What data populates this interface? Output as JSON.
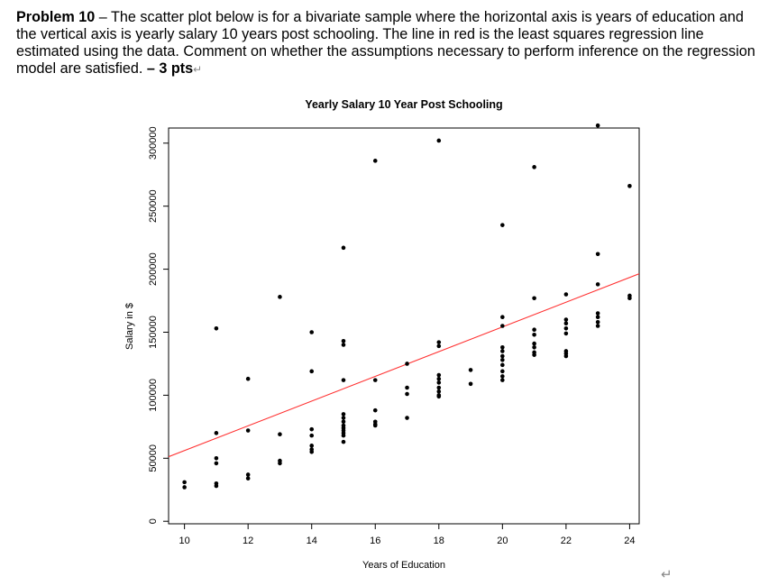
{
  "problem": {
    "label": "Problem 10",
    "dash": " – ",
    "body": "The scatter plot below is for a bivariate sample where the horizontal axis is years of education and the vertical axis is yearly salary 10 years post schooling.  The line in red is the least squares regression line estimated using the data.  Comment on whether the assumptions necessary to perform inference on the regression model are satisfied. ",
    "points_label": "– 3 pts",
    "return_symbol": "↵"
  },
  "chart_data": {
    "type": "scatter",
    "title": "Yearly Salary 10 Year Post Schooling",
    "xlabel": "Years of Education",
    "ylabel": "Salary in $",
    "xlim": [
      9.5,
      24.3
    ],
    "ylim": [
      -2000,
      312000
    ],
    "xticks": [
      10,
      12,
      14,
      16,
      18,
      20,
      22,
      24
    ],
    "yticks": [
      0,
      50000,
      100000,
      150000,
      200000,
      250000,
      300000
    ],
    "grid": false,
    "series": [
      {
        "x": [
          10,
          10,
          11,
          11,
          11,
          11,
          11,
          11,
          12,
          12,
          12,
          12,
          13,
          13,
          13,
          13,
          14,
          14,
          14,
          14,
          14,
          14,
          14,
          15,
          15,
          15,
          15,
          15,
          15,
          15,
          15,
          15,
          15,
          15,
          15,
          15,
          16,
          16,
          16,
          16,
          16,
          16,
          17,
          17,
          17,
          17,
          18,
          18,
          18,
          18,
          18,
          18,
          18,
          18,
          18,
          18,
          19,
          19,
          20,
          20,
          20,
          20,
          20,
          20,
          20,
          20,
          20,
          20,
          20,
          21,
          21,
          21,
          21,
          21,
          21,
          21,
          21,
          22,
          22,
          22,
          22,
          22,
          22,
          22,
          22,
          23,
          23,
          23,
          23,
          23,
          23,
          23,
          24,
          24,
          24
        ],
        "y": [
          31000,
          27000,
          153000,
          70000,
          50000,
          46000,
          30000,
          28000,
          113000,
          72000,
          37000,
          34000,
          178000,
          69000,
          48000,
          46000,
          150000,
          119000,
          73000,
          68000,
          60000,
          57000,
          55000,
          217000,
          143000,
          140000,
          112000,
          85000,
          82000,
          79000,
          76000,
          74000,
          72000,
          70000,
          68000,
          63000,
          286000,
          112000,
          88000,
          79000,
          77000,
          76000,
          125000,
          106000,
          101000,
          82000,
          302000,
          142000,
          139000,
          116000,
          113000,
          110000,
          106000,
          103000,
          100000,
          99000,
          120000,
          109000,
          235000,
          162000,
          155000,
          138000,
          135000,
          131000,
          128000,
          124000,
          119000,
          115000,
          112000,
          281000,
          177000,
          152000,
          148000,
          141000,
          138000,
          134000,
          132000,
          180000,
          160000,
          157000,
          153000,
          149000,
          135000,
          133000,
          131000,
          314000,
          212000,
          188000,
          165000,
          162000,
          158000,
          155000,
          266000,
          179000,
          177000
        ]
      }
    ],
    "regression": {
      "intercept": -42000,
      "slope": 9810,
      "color": "#ff3030"
    },
    "point_color": "#000000"
  }
}
